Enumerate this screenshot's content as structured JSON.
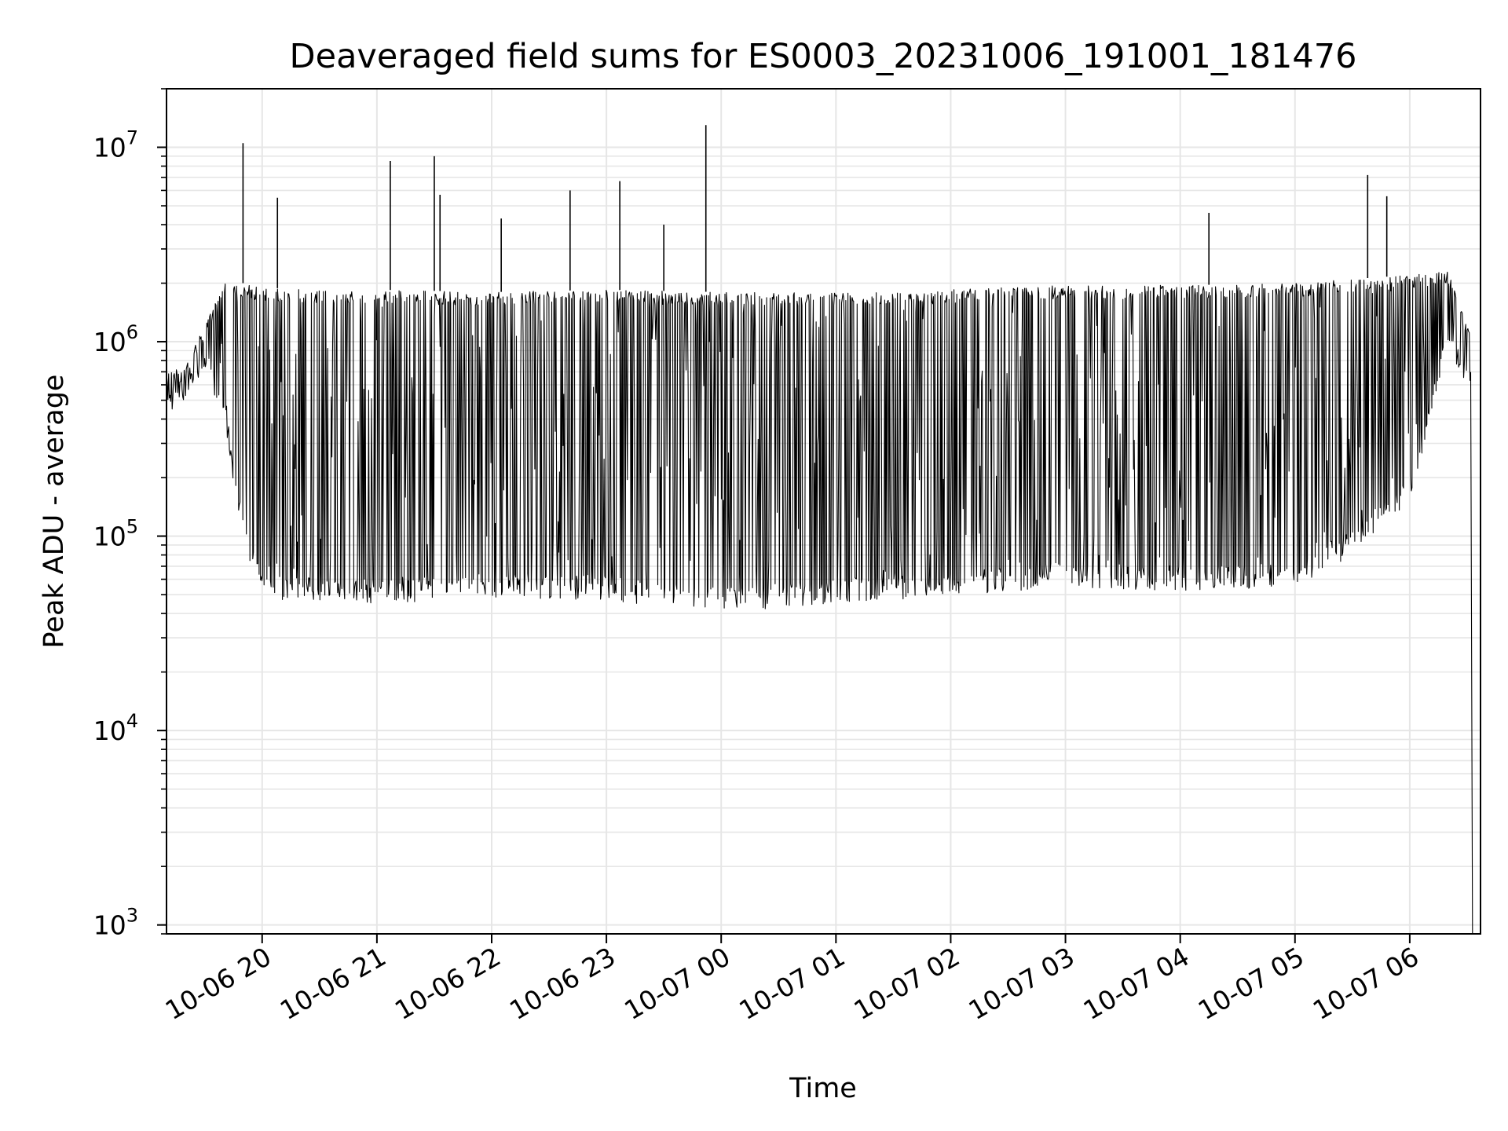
{
  "chart_data": {
    "type": "line",
    "title": "Deaveraged field sums for ES0003_20231006_191001_181476",
    "xlabel": "Time",
    "ylabel": "Peak ADU - average",
    "yscale": "log",
    "ylim": [
      900,
      20000000
    ],
    "xlim": [
      "2023-10-06 19:10",
      "2023-10-07 06:37"
    ],
    "grid": true,
    "line_color": "#000000",
    "grid_color": "#e6e6e6",
    "x_ticks": [
      {
        "label": "10-06 20",
        "t": "2023-10-06 20:00"
      },
      {
        "label": "10-06 21",
        "t": "2023-10-06 21:00"
      },
      {
        "label": "10-06 22",
        "t": "2023-10-06 22:00"
      },
      {
        "label": "10-06 23",
        "t": "2023-10-06 23:00"
      },
      {
        "label": "10-07 00",
        "t": "2023-10-07 00:00"
      },
      {
        "label": "10-07 01",
        "t": "2023-10-07 01:00"
      },
      {
        "label": "10-07 02",
        "t": "2023-10-07 02:00"
      },
      {
        "label": "10-07 03",
        "t": "2023-10-07 03:00"
      },
      {
        "label": "10-07 04",
        "t": "2023-10-07 04:00"
      },
      {
        "label": "10-07 05",
        "t": "2023-10-07 05:00"
      },
      {
        "label": "10-07 06",
        "t": "2023-10-07 06:00"
      }
    ],
    "y_ticks": [
      {
        "base": "10",
        "exp": "3",
        "value": 1000
      },
      {
        "base": "10",
        "exp": "4",
        "value": 10000
      },
      {
        "base": "10",
        "exp": "5",
        "value": 100000
      },
      {
        "base": "10",
        "exp": "6",
        "value": 1000000
      },
      {
        "base": "10",
        "exp": "7",
        "value": 10000000
      }
    ],
    "series": [
      {
        "envelope": [
          {
            "t": "2023-10-06 19:10",
            "low": 420000,
            "high": 700000
          },
          {
            "t": "2023-10-06 19:20",
            "low": 500000,
            "high": 800000
          },
          {
            "t": "2023-10-06 19:30",
            "low": 700000,
            "high": 1200000
          },
          {
            "t": "2023-10-06 19:40",
            "low": 400000,
            "high": 2000000
          },
          {
            "t": "2023-10-06 19:50",
            "low": 90000,
            "high": 2000000
          },
          {
            "t": "2023-10-06 20:00",
            "low": 48000,
            "high": 1900000
          },
          {
            "t": "2023-10-06 20:30",
            "low": 45000,
            "high": 1850000
          },
          {
            "t": "2023-10-06 21:00",
            "low": 45000,
            "high": 1850000
          },
          {
            "t": "2023-10-06 22:00",
            "low": 48000,
            "high": 1800000
          },
          {
            "t": "2023-10-06 23:00",
            "low": 47000,
            "high": 1850000
          },
          {
            "t": "2023-10-07 00:00",
            "low": 40000,
            "high": 1800000
          },
          {
            "t": "2023-10-07 01:00",
            "low": 45000,
            "high": 1800000
          },
          {
            "t": "2023-10-07 02:00",
            "low": 48000,
            "high": 1850000
          },
          {
            "t": "2023-10-07 03:00",
            "low": 55000,
            "high": 1950000
          },
          {
            "t": "2023-10-07 04:00",
            "low": 52000,
            "high": 1950000
          },
          {
            "t": "2023-10-07 05:00",
            "low": 55000,
            "high": 2000000
          },
          {
            "t": "2023-10-07 05:30",
            "low": 80000,
            "high": 2100000
          },
          {
            "t": "2023-10-07 06:00",
            "low": 150000,
            "high": 2200000
          },
          {
            "t": "2023-10-07 06:20",
            "low": 900000,
            "high": 2300000
          },
          {
            "t": "2023-10-07 06:30",
            "low": 600000,
            "high": 1200000
          }
        ],
        "spikes": [
          {
            "t": "2023-10-06 19:50",
            "value": 10500000
          },
          {
            "t": "2023-10-06 20:08",
            "value": 5500000
          },
          {
            "t": "2023-10-06 21:07",
            "value": 8500000
          },
          {
            "t": "2023-10-06 21:30",
            "value": 9000000
          },
          {
            "t": "2023-10-06 21:33",
            "value": 5700000
          },
          {
            "t": "2023-10-06 22:05",
            "value": 4300000
          },
          {
            "t": "2023-10-06 22:41",
            "value": 6000000
          },
          {
            "t": "2023-10-06 23:07",
            "value": 6700000
          },
          {
            "t": "2023-10-06 23:30",
            "value": 4000000
          },
          {
            "t": "2023-10-06 23:52",
            "value": 13000000
          },
          {
            "t": "2023-10-07 04:15",
            "value": 4600000
          },
          {
            "t": "2023-10-07 05:38",
            "value": 7200000
          },
          {
            "t": "2023-10-07 05:48",
            "value": 5600000
          }
        ],
        "end_drop": {
          "t": "2023-10-07 06:32",
          "value": 900
        }
      }
    ]
  }
}
